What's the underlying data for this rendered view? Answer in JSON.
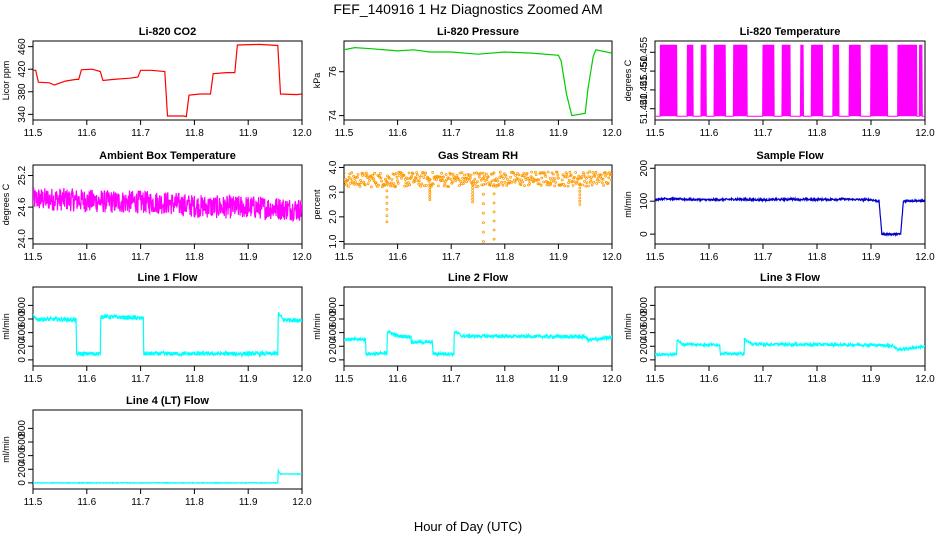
{
  "figure": {
    "title": "FEF_140916  1 Hz Diagnostics Zoomed AM",
    "xlabel": "Hour of Day (UTC)"
  },
  "chart_data": [
    {
      "type": "line",
      "title": "Li-820 CO2",
      "ylabel": "Licor ppm",
      "xlim": [
        11.5,
        12.0
      ],
      "xticks": [
        "11.5",
        "11.6",
        "11.7",
        "11.8",
        "11.9",
        "12.0"
      ],
      "ylim": [
        330,
        470
      ],
      "yticks": [
        "340",
        "380",
        "420",
        "460"
      ],
      "color": "#ff0000",
      "series": [
        {
          "x": [
            11.5,
            11.505,
            11.51,
            11.53,
            11.54,
            11.56,
            11.58,
            11.585,
            11.59,
            11.61,
            11.625,
            11.63,
            11.65,
            11.68,
            11.695,
            11.7,
            11.72,
            11.745,
            11.75,
            11.78,
            11.785,
            11.79,
            11.81,
            11.83,
            11.835,
            11.86,
            11.875,
            11.88,
            11.92,
            11.955,
            11.96,
            11.99,
            12.0
          ],
          "y": [
            418,
            418,
            397,
            396,
            392,
            399,
            402,
            402,
            419,
            420,
            416,
            400,
            402,
            404,
            406,
            418,
            418,
            416,
            337,
            337,
            336,
            374,
            376,
            376,
            412,
            414,
            414,
            463,
            464,
            462,
            376,
            375,
            376
          ]
        }
      ]
    },
    {
      "type": "line",
      "title": "Li-820 Pressure",
      "ylabel": "kPa",
      "xlim": [
        11.5,
        12.0
      ],
      "xticks": [
        "11.5",
        "11.6",
        "11.7",
        "11.8",
        "11.9",
        "12.0"
      ],
      "ylim": [
        73.8,
        77.4
      ],
      "yticks": [
        "74",
        "76"
      ],
      "color": "#00cc00",
      "series": [
        {
          "x": [
            11.5,
            11.52,
            11.55,
            11.6,
            11.63,
            11.66,
            11.7,
            11.75,
            11.8,
            11.85,
            11.9,
            11.905,
            11.915,
            11.925,
            11.95,
            11.955,
            11.965,
            11.97,
            12.0
          ],
          "y": [
            77.0,
            77.1,
            77.05,
            76.95,
            77.0,
            76.9,
            76.9,
            76.8,
            76.9,
            76.85,
            76.75,
            76.5,
            75.0,
            74.0,
            74.1,
            75.2,
            76.7,
            77.0,
            76.85
          ]
        }
      ]
    },
    {
      "type": "line",
      "title": "Li-820 Temperature",
      "ylabel": "degrees C",
      "xlim": [
        11.5,
        12.0
      ],
      "xticks": [
        "11.5",
        "11.6",
        "11.7",
        "11.8",
        "11.9",
        "12.0"
      ],
      "ylim": [
        51.437,
        51.458
      ],
      "yticks": [
        "51.440",
        "51.445",
        "51.450",
        "51.455"
      ],
      "color": "#ff00ff",
      "low": 51.438,
      "high": 51.457,
      "toggle_bands": [
        [
          11.51,
          11.54
        ],
        [
          11.56,
          11.57
        ],
        [
          11.585,
          11.595
        ],
        [
          11.61,
          11.63
        ],
        [
          11.645,
          11.67
        ],
        [
          11.7,
          11.72
        ],
        [
          11.735,
          11.75
        ],
        [
          11.77,
          11.775
        ],
        [
          11.79,
          11.81
        ],
        [
          11.83,
          11.84
        ],
        [
          11.86,
          11.88
        ],
        [
          11.9,
          11.93
        ],
        [
          11.95,
          11.985
        ],
        [
          11.99,
          11.995
        ]
      ]
    },
    {
      "type": "line",
      "title": "Ambient Box Temperature",
      "ylabel": "degrees C",
      "xlim": [
        11.5,
        12.0
      ],
      "xticks": [
        "11.5",
        "11.6",
        "11.7",
        "11.8",
        "11.9",
        "12.0"
      ],
      "ylim": [
        23.9,
        25.4
      ],
      "yticks": [
        "24.0",
        "24.6",
        "25.2"
      ],
      "color": "#ff00ff",
      "series": [
        {
          "x": [
            11.5,
            11.55,
            11.6,
            11.65,
            11.7,
            11.75,
            11.8,
            11.85,
            11.9,
            11.95,
            12.0
          ],
          "y": [
            24.75,
            24.75,
            24.72,
            24.7,
            24.7,
            24.68,
            24.62,
            24.6,
            24.6,
            24.58,
            24.55
          ],
          "noise": 0.22
        }
      ]
    },
    {
      "type": "scatter",
      "title": "Gas Stream RH",
      "ylabel": "percent",
      "xlim": [
        11.5,
        12.0
      ],
      "xticks": [
        "11.5",
        "11.6",
        "11.7",
        "11.8",
        "11.9",
        "12.0"
      ],
      "ylim": [
        0.9,
        4.1
      ],
      "yticks": [
        "1.0",
        "2.0",
        "3.0",
        "4.0"
      ],
      "color": "#ff9900",
      "series": [
        {
          "x": [
            11.5,
            12.0
          ],
          "y": [
            3.5,
            3.55
          ],
          "noise": 0.3,
          "dips": [
            {
              "x": 11.58,
              "y": 1.8
            },
            {
              "x": 11.66,
              "y": 2.7
            },
            {
              "x": 11.76,
              "y": 1.0
            },
            {
              "x": 11.78,
              "y": 1.1
            },
            {
              "x": 11.74,
              "y": 2.6
            },
            {
              "x": 11.94,
              "y": 2.5
            }
          ]
        }
      ]
    },
    {
      "type": "line",
      "title": "Sample Flow",
      "ylabel": "ml/min",
      "xlim": [
        11.5,
        12.0
      ],
      "xticks": [
        "11.5",
        "11.6",
        "11.7",
        "11.8",
        "11.9",
        "12.0"
      ],
      "ylim": [
        -30,
        210
      ],
      "yticks": [
        "0",
        "100",
        "200"
      ],
      "color": "#0000cc",
      "series": [
        {
          "x": [
            11.5,
            11.52,
            11.55,
            11.6,
            11.65,
            11.7,
            11.75,
            11.8,
            11.85,
            11.9,
            11.915,
            11.92,
            11.955,
            11.96,
            11.97,
            12.0
          ],
          "y": [
            105,
            108,
            106,
            104,
            106,
            104,
            106,
            105,
            106,
            104,
            100,
            0,
            0,
            100,
            102,
            100
          ],
          "noise": 3
        }
      ]
    },
    {
      "type": "line",
      "title": "Line 1 Flow",
      "ylabel": "ml/min",
      "xlim": [
        11.5,
        12.0
      ],
      "xticks": [
        "11.5",
        "11.6",
        "11.7",
        "11.8",
        "11.9",
        "12.0"
      ],
      "ylim": [
        -90,
        1070
      ],
      "yticks": [
        "0",
        "200",
        "400",
        "600",
        "800"
      ],
      "color": "#00ffff",
      "series": [
        {
          "x": [
            11.5,
            11.505,
            11.58,
            11.581,
            11.625,
            11.626,
            11.705,
            11.706,
            11.955,
            11.956,
            11.965,
            12.0
          ],
          "y": [
            650,
            600,
            590,
            90,
            90,
            640,
            610,
            90,
            90,
            680,
            590,
            580
          ],
          "noise": 30
        }
      ]
    },
    {
      "type": "line",
      "title": "Line 2 Flow",
      "ylabel": "ml/min",
      "xlim": [
        11.5,
        12.0
      ],
      "xticks": [
        "11.5",
        "11.6",
        "11.7",
        "11.8",
        "11.9",
        "12.0"
      ],
      "ylim": [
        -90,
        1070
      ],
      "yticks": [
        "0",
        "200",
        "400",
        "600",
        "800"
      ],
      "color": "#00ffff",
      "series": [
        {
          "x": [
            11.5,
            11.54,
            11.541,
            11.58,
            11.581,
            11.6,
            11.625,
            11.626,
            11.665,
            11.666,
            11.705,
            11.706,
            11.72,
            11.95,
            11.955,
            12.0
          ],
          "y": [
            300,
            300,
            90,
            90,
            420,
            350,
            340,
            260,
            260,
            90,
            90,
            420,
            350,
            340,
            290,
            330
          ],
          "noise": 25
        }
      ]
    },
    {
      "type": "line",
      "title": "Line 3 Flow",
      "ylabel": "ml/min",
      "xlim": [
        11.5,
        12.0
      ],
      "xticks": [
        "11.5",
        "11.6",
        "11.7",
        "11.8",
        "11.9",
        "12.0"
      ],
      "ylim": [
        -90,
        1070
      ],
      "yticks": [
        "0",
        "200",
        "400",
        "600",
        "800"
      ],
      "color": "#00ffff",
      "series": [
        {
          "x": [
            11.5,
            11.54,
            11.541,
            11.55,
            11.62,
            11.621,
            11.665,
            11.666,
            11.68,
            11.9,
            11.94,
            11.95,
            12.0
          ],
          "y": [
            80,
            80,
            300,
            230,
            220,
            90,
            90,
            300,
            230,
            220,
            210,
            150,
            200
          ],
          "noise": 20
        }
      ]
    },
    {
      "type": "line",
      "title": "Line 4 (LT) Flow",
      "ylabel": "ml/min",
      "xlim": [
        11.5,
        12.0
      ],
      "xticks": [
        "11.5",
        "11.6",
        "11.7",
        "11.8",
        "11.9",
        "12.0"
      ],
      "ylim": [
        -90,
        1070
      ],
      "yticks": [
        "0",
        "200",
        "400",
        "600",
        "800"
      ],
      "color": "#00ffff",
      "series": [
        {
          "x": [
            11.5,
            11.955,
            11.956,
            11.96,
            12.0
          ],
          "y": [
            0,
            0,
            180,
            130,
            130
          ],
          "noise": 4
        }
      ]
    }
  ]
}
